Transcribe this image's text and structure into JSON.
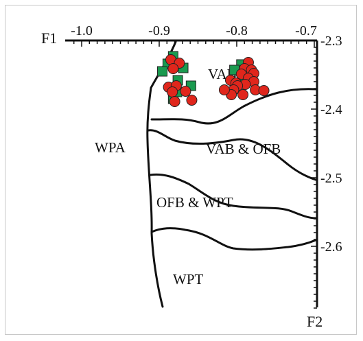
{
  "chart_data": {
    "type": "scatter",
    "title": "",
    "x_axis": {
      "label": "F1",
      "range": [
        -1.05,
        -0.7
      ],
      "ticks": [
        -1.0,
        -0.9,
        -0.8,
        -0.7
      ],
      "tick_labels": [
        "-1.0",
        "-0.9",
        "-0.8",
        "-0.7"
      ],
      "position": "top"
    },
    "y_axis": {
      "label": "F2",
      "range": [
        -2.3,
        -2.69
      ],
      "ticks": [
        -2.3,
        -2.4,
        -2.5,
        -2.6
      ],
      "tick_labels": [
        "-2.3",
        "-2.4",
        "-2.5",
        "-2.6"
      ],
      "position": "right",
      "inverted": true
    },
    "grid": false,
    "legend": "none",
    "field_labels": [
      {
        "id": "vab",
        "text": "VAB"
      },
      {
        "id": "vab-ofb",
        "text": "VAB & OFB"
      },
      {
        "id": "wpa",
        "text": "WPA"
      },
      {
        "id": "ofb-wpt",
        "text": "OFB & WPT"
      },
      {
        "id": "wpt",
        "text": "WPT"
      }
    ],
    "series": [
      {
        "marker": "square",
        "color": "#1a9a4f",
        "points": [
          [
            -0.882,
            -2.323
          ],
          [
            -0.889,
            -2.334
          ],
          [
            -0.869,
            -2.34
          ],
          [
            -0.896,
            -2.345
          ],
          [
            -0.876,
            -2.358
          ],
          [
            -0.859,
            -2.366
          ],
          [
            -0.882,
            -2.385
          ],
          [
            -0.877,
            -2.375
          ],
          [
            -0.794,
            -2.335
          ],
          [
            -0.803,
            -2.343
          ],
          [
            -0.792,
            -2.356
          ]
        ]
      },
      {
        "marker": "circle",
        "color": "#e0261c",
        "points": [
          [
            -0.885,
            -2.328
          ],
          [
            -0.874,
            -2.333
          ],
          [
            -0.882,
            -2.341
          ],
          [
            -0.888,
            -2.368
          ],
          [
            -0.878,
            -2.366
          ],
          [
            -0.883,
            -2.375
          ],
          [
            -0.866,
            -2.374
          ],
          [
            -0.88,
            -2.389
          ],
          [
            -0.858,
            -2.387
          ],
          [
            -0.785,
            -2.332
          ],
          [
            -0.79,
            -2.341
          ],
          [
            -0.781,
            -2.343
          ],
          [
            -0.778,
            -2.348
          ],
          [
            -0.794,
            -2.349
          ],
          [
            -0.785,
            -2.355
          ],
          [
            -0.808,
            -2.358
          ],
          [
            -0.801,
            -2.362
          ],
          [
            -0.778,
            -2.36
          ],
          [
            -0.789,
            -2.364
          ],
          [
            -0.799,
            -2.366
          ],
          [
            -0.804,
            -2.372
          ],
          [
            -0.776,
            -2.372
          ],
          [
            -0.765,
            -2.373
          ],
          [
            -0.792,
            -2.379
          ],
          [
            -0.807,
            -2.379
          ],
          [
            -0.816,
            -2.372
          ]
        ]
      }
    ],
    "colors": {
      "square": "#1a9a4f",
      "circle": "#e0261c",
      "boundary": "#111111"
    }
  }
}
